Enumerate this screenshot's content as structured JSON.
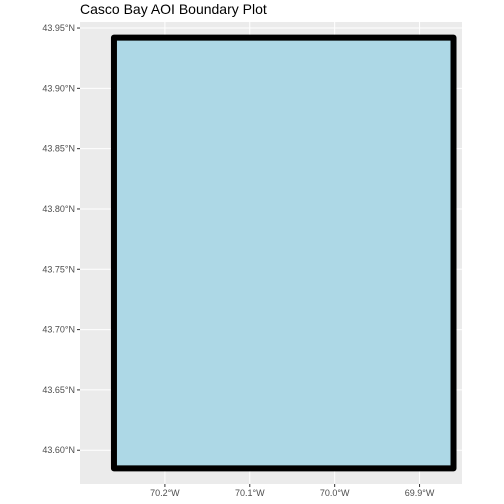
{
  "title": "Casco Bay AOI Boundary Plot",
  "chart_data": {
    "type": "map",
    "title": "Casco Bay AOI Boundary Plot",
    "xlim": [
      -70.3,
      -69.85
    ],
    "ylim": [
      43.572,
      43.955
    ],
    "x_ticks": [
      {
        "value": -70.2,
        "label": "70.2°W"
      },
      {
        "value": -70.1,
        "label": "70.1°W"
      },
      {
        "value": -70.0,
        "label": "70.0°W"
      },
      {
        "value": -69.9,
        "label": "69.9°W"
      }
    ],
    "y_ticks": [
      {
        "value": 43.6,
        "label": "43.60°N"
      },
      {
        "value": 43.65,
        "label": "43.65°N"
      },
      {
        "value": 43.7,
        "label": "43.70°N"
      },
      {
        "value": 43.75,
        "label": "43.75°N"
      },
      {
        "value": 43.8,
        "label": "43.80°N"
      },
      {
        "value": 43.85,
        "label": "43.85°N"
      },
      {
        "value": 43.9,
        "label": "43.90°N"
      },
      {
        "value": 43.95,
        "label": "43.95°N"
      }
    ],
    "boundary": {
      "xmin": -70.26,
      "xmax": -69.86,
      "ymin": 43.585,
      "ymax": 43.942
    },
    "grid": true,
    "colors": {
      "panel_background": "#ebebeb",
      "grid_line": "#ffffff",
      "polygon_fill": "#add8e6",
      "polygon_outline": "#000000"
    }
  }
}
